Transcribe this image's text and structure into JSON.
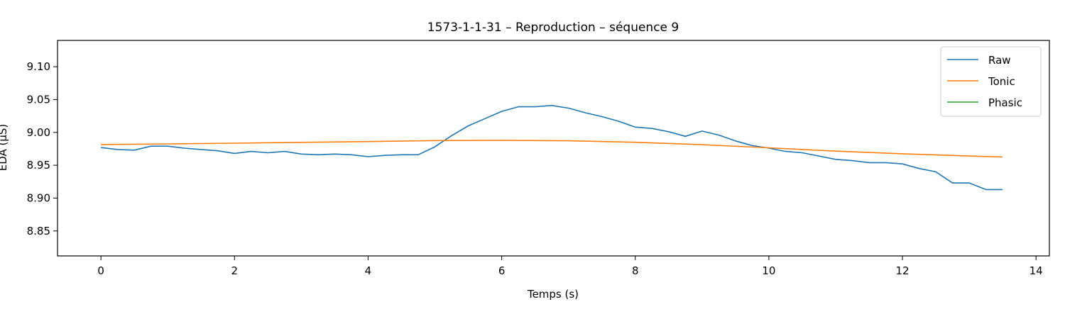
{
  "chart_data": {
    "type": "line",
    "title": "1573-1-1-31 – Reproduction – séquence 9",
    "xlabel": "Temps (s)",
    "ylabel": "EDA (µS)",
    "xlim": [
      -0.65,
      14.2
    ],
    "ylim": [
      8.812,
      9.14
    ],
    "xticks": [
      0,
      2,
      4,
      6,
      8,
      10,
      12,
      14
    ],
    "yticks": [
      8.85,
      8.9,
      8.95,
      9.0,
      9.05,
      9.1
    ],
    "grid": false,
    "legend_position": "top-right",
    "series": [
      {
        "name": "Raw",
        "color": "#1f77b4",
        "x": [
          0,
          0.25,
          0.5,
          0.75,
          1.0,
          1.25,
          1.5,
          1.75,
          2.0,
          2.25,
          2.5,
          2.75,
          3.0,
          3.25,
          3.5,
          3.75,
          4.0,
          4.25,
          4.5,
          4.75,
          5.0,
          5.25,
          5.5,
          5.75,
          6.0,
          6.25,
          6.5,
          6.75,
          7.0,
          7.25,
          7.5,
          7.75,
          8.0,
          8.25,
          8.5,
          8.75,
          9.0,
          9.25,
          9.5,
          9.75,
          10.0,
          10.25,
          10.5,
          10.75,
          11.0,
          11.25,
          11.5,
          11.75,
          12.0,
          12.25,
          12.5,
          12.75,
          13.0,
          13.25,
          13.5
        ],
        "y": [
          8.977,
          8.974,
          8.973,
          8.979,
          8.979,
          8.976,
          8.974,
          8.972,
          8.968,
          8.971,
          8.969,
          8.971,
          8.967,
          8.966,
          8.967,
          8.966,
          8.963,
          8.965,
          8.966,
          8.966,
          8.978,
          8.995,
          9.01,
          9.021,
          9.032,
          9.039,
          9.039,
          9.041,
          9.037,
          9.03,
          9.024,
          9.017,
          9.008,
          9.006,
          9.001,
          8.994,
          9.002,
          8.996,
          8.987,
          8.98,
          8.976,
          8.971,
          8.969,
          8.964,
          8.959,
          8.957,
          8.954,
          8.954,
          8.952,
          8.945,
          8.94,
          8.923,
          8.923,
          8.913,
          8.913
        ]
      },
      {
        "name": "Tonic",
        "color": "#ff7f0e",
        "x": [
          0,
          1,
          2,
          3,
          4,
          5,
          6,
          7,
          8,
          9,
          10,
          11,
          12,
          13,
          13.5
        ],
        "y": [
          8.9815,
          8.9825,
          8.9835,
          8.9848,
          8.986,
          8.9875,
          8.988,
          8.9872,
          8.985,
          8.9813,
          8.9765,
          8.9715,
          8.9675,
          8.964,
          8.9625
        ]
      },
      {
        "name": "Phasic",
        "color": "#2ca02c",
        "x": [],
        "y": []
      }
    ]
  }
}
